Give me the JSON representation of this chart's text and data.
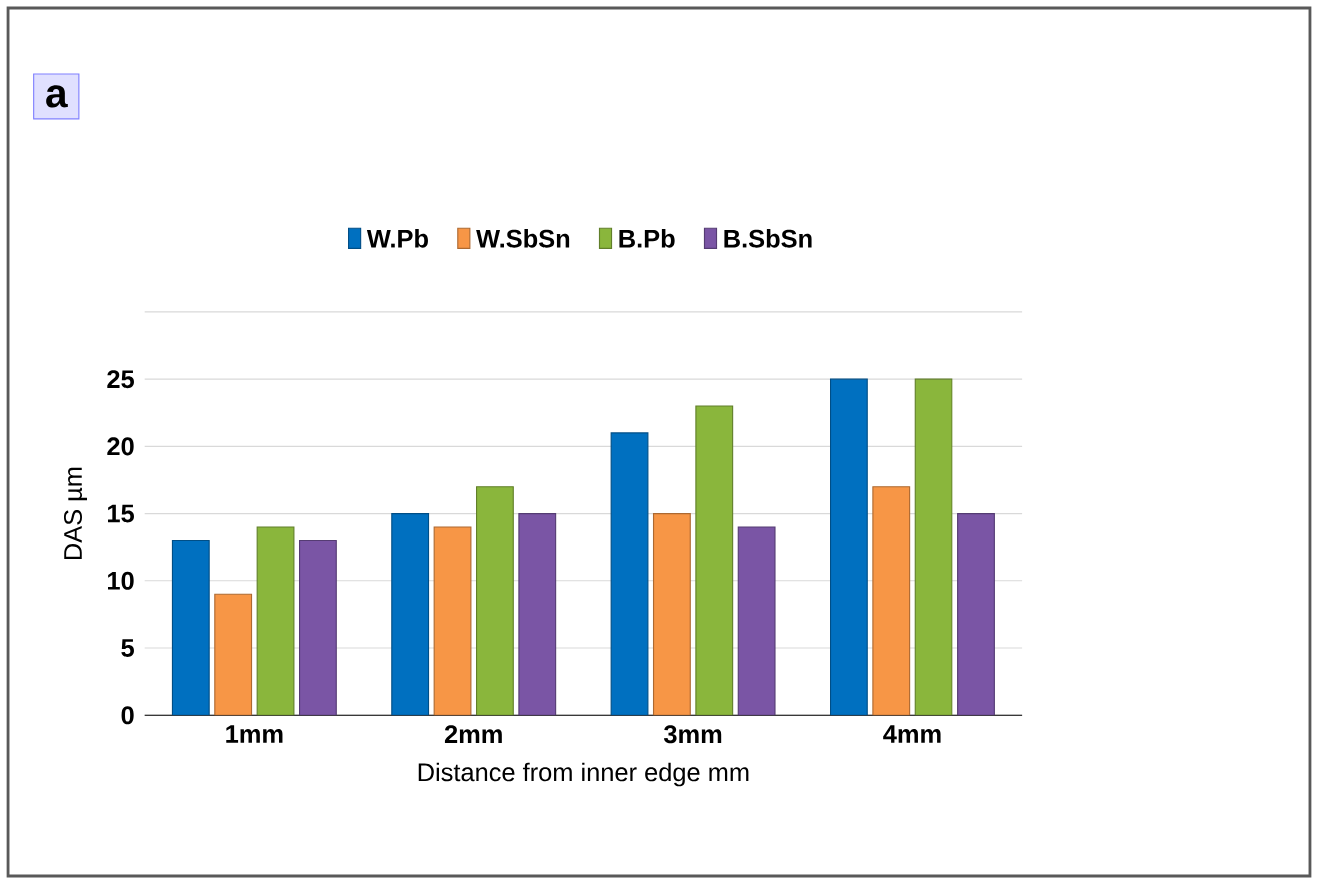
{
  "chart_data": {
    "type": "bar",
    "title": "a",
    "xlabel": "Distance from inner edge mm",
    "ylabel": "DAS µm",
    "categories": [
      "1mm",
      "2mm",
      "3mm",
      "4mm"
    ],
    "series": [
      {
        "name": "W.Pb",
        "color": "#0070c0",
        "values": [
          13,
          15,
          21,
          25
        ]
      },
      {
        "name": "W.SbSn",
        "color": "#f79646",
        "values": [
          9,
          14,
          15,
          17
        ]
      },
      {
        "name": "B.Pb",
        "color": "#8ab63c",
        "values": [
          14,
          17,
          23,
          25
        ]
      },
      {
        "name": "B.SbSn",
        "color": "#7a55a5",
        "values": [
          13,
          15,
          14,
          15
        ]
      }
    ],
    "ylim": [
      0,
      30
    ],
    "yticks": [
      0,
      5,
      10,
      15,
      20,
      25,
      {
        "value": 30,
        "label": null
      }
    ],
    "grid": "y",
    "legend": "top"
  }
}
